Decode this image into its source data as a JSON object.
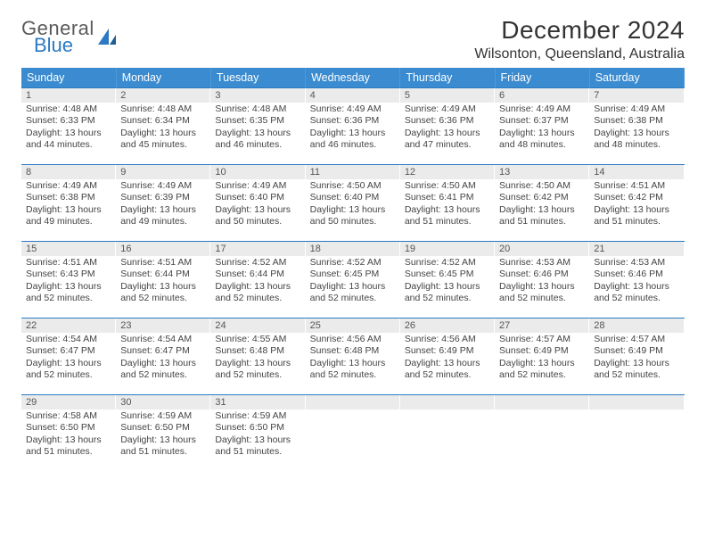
{
  "logo": {
    "top": "General",
    "bottom": "Blue"
  },
  "title": "December 2024",
  "location": "Wilsonton, Queensland, Australia",
  "colors": {
    "header_bg": "#3a8bd0",
    "header_text": "#ffffff",
    "daynum_bg": "#ebebeb",
    "border": "#2b79c2",
    "logo_gray": "#5a5a5a",
    "logo_blue": "#2b79c2"
  },
  "weekdays": [
    "Sunday",
    "Monday",
    "Tuesday",
    "Wednesday",
    "Thursday",
    "Friday",
    "Saturday"
  ],
  "weeks": [
    [
      {
        "n": "1",
        "sr": "4:48 AM",
        "ss": "6:33 PM",
        "dl": "13 hours and 44 minutes."
      },
      {
        "n": "2",
        "sr": "4:48 AM",
        "ss": "6:34 PM",
        "dl": "13 hours and 45 minutes."
      },
      {
        "n": "3",
        "sr": "4:48 AM",
        "ss": "6:35 PM",
        "dl": "13 hours and 46 minutes."
      },
      {
        "n": "4",
        "sr": "4:49 AM",
        "ss": "6:36 PM",
        "dl": "13 hours and 46 minutes."
      },
      {
        "n": "5",
        "sr": "4:49 AM",
        "ss": "6:36 PM",
        "dl": "13 hours and 47 minutes."
      },
      {
        "n": "6",
        "sr": "4:49 AM",
        "ss": "6:37 PM",
        "dl": "13 hours and 48 minutes."
      },
      {
        "n": "7",
        "sr": "4:49 AM",
        "ss": "6:38 PM",
        "dl": "13 hours and 48 minutes."
      }
    ],
    [
      {
        "n": "8",
        "sr": "4:49 AM",
        "ss": "6:38 PM",
        "dl": "13 hours and 49 minutes."
      },
      {
        "n": "9",
        "sr": "4:49 AM",
        "ss": "6:39 PM",
        "dl": "13 hours and 49 minutes."
      },
      {
        "n": "10",
        "sr": "4:49 AM",
        "ss": "6:40 PM",
        "dl": "13 hours and 50 minutes."
      },
      {
        "n": "11",
        "sr": "4:50 AM",
        "ss": "6:40 PM",
        "dl": "13 hours and 50 minutes."
      },
      {
        "n": "12",
        "sr": "4:50 AM",
        "ss": "6:41 PM",
        "dl": "13 hours and 51 minutes."
      },
      {
        "n": "13",
        "sr": "4:50 AM",
        "ss": "6:42 PM",
        "dl": "13 hours and 51 minutes."
      },
      {
        "n": "14",
        "sr": "4:51 AM",
        "ss": "6:42 PM",
        "dl": "13 hours and 51 minutes."
      }
    ],
    [
      {
        "n": "15",
        "sr": "4:51 AM",
        "ss": "6:43 PM",
        "dl": "13 hours and 52 minutes."
      },
      {
        "n": "16",
        "sr": "4:51 AM",
        "ss": "6:44 PM",
        "dl": "13 hours and 52 minutes."
      },
      {
        "n": "17",
        "sr": "4:52 AM",
        "ss": "6:44 PM",
        "dl": "13 hours and 52 minutes."
      },
      {
        "n": "18",
        "sr": "4:52 AM",
        "ss": "6:45 PM",
        "dl": "13 hours and 52 minutes."
      },
      {
        "n": "19",
        "sr": "4:52 AM",
        "ss": "6:45 PM",
        "dl": "13 hours and 52 minutes."
      },
      {
        "n": "20",
        "sr": "4:53 AM",
        "ss": "6:46 PM",
        "dl": "13 hours and 52 minutes."
      },
      {
        "n": "21",
        "sr": "4:53 AM",
        "ss": "6:46 PM",
        "dl": "13 hours and 52 minutes."
      }
    ],
    [
      {
        "n": "22",
        "sr": "4:54 AM",
        "ss": "6:47 PM",
        "dl": "13 hours and 52 minutes."
      },
      {
        "n": "23",
        "sr": "4:54 AM",
        "ss": "6:47 PM",
        "dl": "13 hours and 52 minutes."
      },
      {
        "n": "24",
        "sr": "4:55 AM",
        "ss": "6:48 PM",
        "dl": "13 hours and 52 minutes."
      },
      {
        "n": "25",
        "sr": "4:56 AM",
        "ss": "6:48 PM",
        "dl": "13 hours and 52 minutes."
      },
      {
        "n": "26",
        "sr": "4:56 AM",
        "ss": "6:49 PM",
        "dl": "13 hours and 52 minutes."
      },
      {
        "n": "27",
        "sr": "4:57 AM",
        "ss": "6:49 PM",
        "dl": "13 hours and 52 minutes."
      },
      {
        "n": "28",
        "sr": "4:57 AM",
        "ss": "6:49 PM",
        "dl": "13 hours and 52 minutes."
      }
    ],
    [
      {
        "n": "29",
        "sr": "4:58 AM",
        "ss": "6:50 PM",
        "dl": "13 hours and 51 minutes."
      },
      {
        "n": "30",
        "sr": "4:59 AM",
        "ss": "6:50 PM",
        "dl": "13 hours and 51 minutes."
      },
      {
        "n": "31",
        "sr": "4:59 AM",
        "ss": "6:50 PM",
        "dl": "13 hours and 51 minutes."
      },
      null,
      null,
      null,
      null
    ]
  ],
  "labels": {
    "sunrise": "Sunrise:",
    "sunset": "Sunset:",
    "daylight": "Daylight:"
  }
}
